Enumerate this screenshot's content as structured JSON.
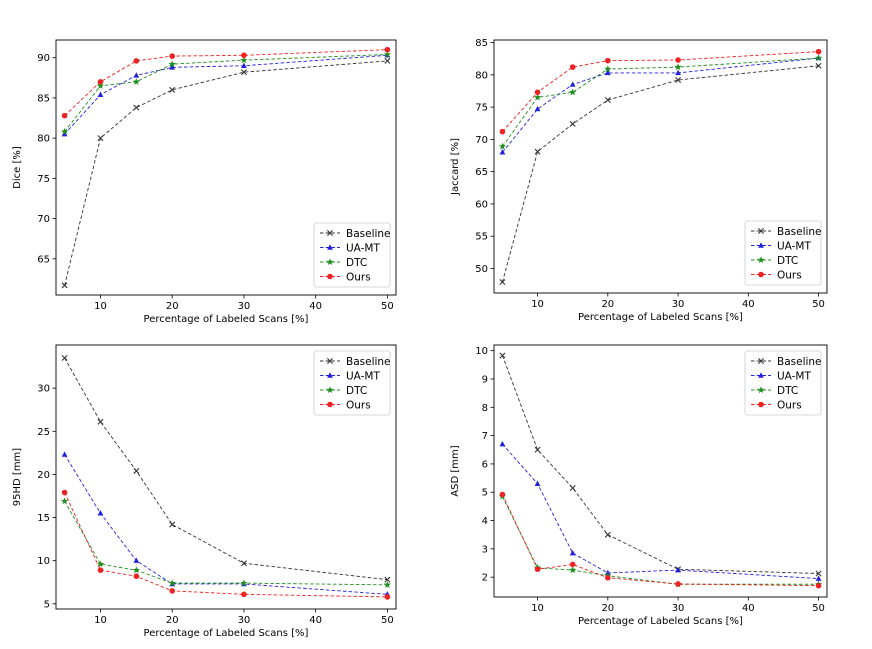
{
  "chart_data": [
    {
      "type": "line",
      "x": [
        5,
        10,
        15,
        20,
        30,
        50
      ],
      "xlabel": "Percentage of Labeled Scans [%]",
      "ylabel": "Dice [%]",
      "xlim": [
        3.8,
        51.2
      ],
      "ylim": [
        60.5,
        92.2
      ],
      "xticks": [
        10,
        20,
        30,
        40,
        50
      ],
      "yticks": [
        65,
        70,
        75,
        80,
        85,
        90
      ],
      "grid": false,
      "legend_position": "lower-right",
      "series": [
        {
          "name": "Baseline",
          "color": "#333333",
          "marker": "x",
          "values": [
            61.7,
            80.0,
            83.8,
            86.0,
            88.2,
            89.6
          ]
        },
        {
          "name": "UA-MT",
          "color": "#2222dd",
          "marker": "triangle",
          "values": [
            80.5,
            85.4,
            87.8,
            88.8,
            89.0,
            90.3
          ]
        },
        {
          "name": "DTC",
          "color": "#1f8f1f",
          "marker": "star",
          "values": [
            80.8,
            86.5,
            87.0,
            89.2,
            89.7,
            90.4
          ]
        },
        {
          "name": "Ours",
          "color": "#ee2222",
          "marker": "circle",
          "values": [
            82.8,
            87.0,
            89.6,
            90.2,
            90.3,
            91.0
          ]
        }
      ]
    },
    {
      "type": "line",
      "x": [
        5,
        10,
        15,
        20,
        30,
        50
      ],
      "xlabel": "Percentage of Labeled Scans [%]",
      "ylabel": "Jaccard [%]",
      "xlim": [
        3.8,
        51.2
      ],
      "ylim": [
        46.2,
        85.4
      ],
      "xticks": [
        10,
        20,
        30,
        40,
        50
      ],
      "yticks": [
        50,
        55,
        60,
        65,
        70,
        75,
        80,
        85
      ],
      "grid": false,
      "legend_position": "lower-right",
      "series": [
        {
          "name": "Baseline",
          "color": "#333333",
          "marker": "x",
          "values": [
            47.9,
            68.1,
            72.4,
            76.1,
            79.2,
            81.4
          ]
        },
        {
          "name": "UA-MT",
          "color": "#2222dd",
          "marker": "triangle",
          "values": [
            68.0,
            74.7,
            78.5,
            80.3,
            80.3,
            82.6
          ]
        },
        {
          "name": "DTC",
          "color": "#1f8f1f",
          "marker": "star",
          "values": [
            68.9,
            76.5,
            77.3,
            80.9,
            81.2,
            82.6
          ]
        },
        {
          "name": "Ours",
          "color": "#ee2222",
          "marker": "circle",
          "values": [
            71.2,
            77.3,
            81.2,
            82.2,
            82.3,
            83.6
          ]
        }
      ]
    },
    {
      "type": "line",
      "x": [
        5,
        10,
        15,
        20,
        30,
        50
      ],
      "xlabel": "Percentage of Labeled Scans [%]",
      "ylabel": "95HD [mm]",
      "xlim": [
        3.8,
        51.2
      ],
      "ylim": [
        4.4,
        35.0
      ],
      "xticks": [
        10,
        20,
        30,
        40,
        50
      ],
      "yticks": [
        5,
        10,
        15,
        20,
        25,
        30
      ],
      "grid": false,
      "legend_position": "upper-right",
      "series": [
        {
          "name": "Baseline",
          "color": "#333333",
          "marker": "x",
          "values": [
            33.5,
            26.1,
            20.4,
            14.2,
            9.7,
            7.8
          ]
        },
        {
          "name": "UA-MT",
          "color": "#2222dd",
          "marker": "triangle",
          "values": [
            22.3,
            15.5,
            10.0,
            7.3,
            7.3,
            6.1
          ]
        },
        {
          "name": "DTC",
          "color": "#1f8f1f",
          "marker": "star",
          "values": [
            16.9,
            9.6,
            8.9,
            7.4,
            7.4,
            7.2
          ]
        },
        {
          "name": "Ours",
          "color": "#ee2222",
          "marker": "circle",
          "values": [
            17.9,
            8.9,
            8.2,
            6.5,
            6.1,
            5.8
          ]
        }
      ]
    },
    {
      "type": "line",
      "x": [
        5,
        10,
        15,
        20,
        30,
        50
      ],
      "xlabel": "Percentage of Labeled Scans [%]",
      "ylabel": "ASD [mm]",
      "xlim": [
        3.8,
        51.2
      ],
      "ylim": [
        1.3,
        10.2
      ],
      "xticks": [
        10,
        20,
        30,
        40,
        50
      ],
      "yticks": [
        2,
        3,
        4,
        5,
        6,
        7,
        8,
        9,
        10
      ],
      "grid": false,
      "legend_position": "upper-right",
      "series": [
        {
          "name": "Baseline",
          "color": "#333333",
          "marker": "x",
          "values": [
            9.83,
            6.5,
            5.15,
            3.5,
            2.28,
            2.13
          ]
        },
        {
          "name": "UA-MT",
          "color": "#2222dd",
          "marker": "triangle",
          "values": [
            6.7,
            5.3,
            2.85,
            2.15,
            2.25,
            1.95
          ]
        },
        {
          "name": "DTC",
          "color": "#1f8f1f",
          "marker": "star",
          "values": [
            4.85,
            2.33,
            2.25,
            2.05,
            1.75,
            1.75
          ]
        },
        {
          "name": "Ours",
          "color": "#ee2222",
          "marker": "circle",
          "values": [
            4.92,
            2.28,
            2.45,
            1.98,
            1.76,
            1.7
          ]
        }
      ]
    }
  ]
}
